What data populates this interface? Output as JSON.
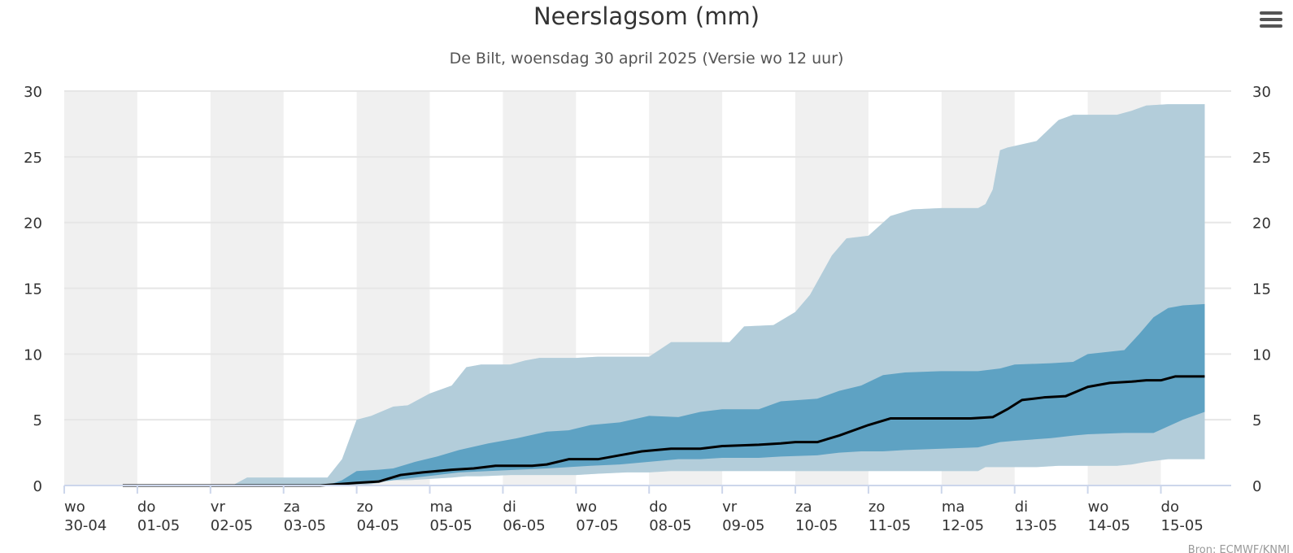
{
  "menu_icon": "hamburger-menu-icon",
  "source_credit": "Bron: ECMWF/KNMI",
  "colors": {
    "band_outer": "#b7d4e2",
    "band_middle": "#adc6d4",
    "band_inner": "#5a9fc2",
    "median_line": "#000000",
    "weekend_shade": "#f0f0f0",
    "gridline": "#e6e6e6",
    "text": "#333333"
  },
  "chart_data": {
    "type": "area",
    "title": "Neerslagsom (mm)",
    "subtitle": "De Bilt, woensdag 30 april 2025 (Versie wo 12 uur)",
    "ylim": [
      0,
      30
    ],
    "y_ticks": [
      0,
      5,
      10,
      15,
      20,
      25,
      30
    ],
    "y_axis_both_sides": true,
    "x_ticks": [
      {
        "day": "wo",
        "date": "30-04"
      },
      {
        "day": "do",
        "date": "01-05"
      },
      {
        "day": "vr",
        "date": "02-05"
      },
      {
        "day": "za",
        "date": "03-05"
      },
      {
        "day": "zo",
        "date": "04-05"
      },
      {
        "day": "ma",
        "date": "05-05"
      },
      {
        "day": "di",
        "date": "06-05"
      },
      {
        "day": "wo",
        "date": "07-05"
      },
      {
        "day": "do",
        "date": "08-05"
      },
      {
        "day": "vr",
        "date": "09-05"
      },
      {
        "day": "za",
        "date": "10-05"
      },
      {
        "day": "zo",
        "date": "11-05"
      },
      {
        "day": "ma",
        "date": "12-05"
      },
      {
        "day": "di",
        "date": "13-05"
      },
      {
        "day": "wo",
        "date": "14-05"
      },
      {
        "day": "do",
        "date": "15-05"
      }
    ],
    "x_unit": "days since 30-04 00:00",
    "x_max": 15.6,
    "shaded_day_bands": [
      0,
      2,
      4,
      6,
      8,
      10,
      12,
      14
    ],
    "grid": true,
    "series": [
      {
        "role": "outer band",
        "data": [
          [
            0.8,
            0,
            0
          ],
          [
            2.3,
            0,
            0
          ],
          [
            2.5,
            0,
            0.6
          ],
          [
            3.6,
            0,
            0.6
          ],
          [
            3.8,
            0,
            2.0
          ],
          [
            4.0,
            0,
            5.0
          ],
          [
            4.2,
            0.1,
            5.3
          ],
          [
            4.5,
            0.4,
            6.0
          ],
          [
            4.7,
            0.4,
            6.1
          ],
          [
            5.0,
            0.5,
            7.0
          ],
          [
            5.3,
            0.6,
            7.6
          ],
          [
            5.5,
            0.7,
            9.0
          ],
          [
            5.7,
            0.7,
            9.2
          ],
          [
            6.1,
            0.8,
            9.2
          ],
          [
            6.3,
            0.8,
            9.5
          ],
          [
            6.5,
            0.8,
            9.7
          ],
          [
            7.0,
            0.8,
            9.7
          ],
          [
            7.3,
            0.9,
            9.8
          ],
          [
            7.7,
            1.0,
            9.8
          ],
          [
            8.0,
            1.0,
            9.8
          ],
          [
            8.3,
            1.1,
            10.9
          ],
          [
            9.1,
            1.1,
            10.9
          ],
          [
            9.3,
            1.1,
            12.1
          ],
          [
            9.7,
            1.1,
            12.2
          ],
          [
            10.0,
            1.1,
            13.2
          ],
          [
            10.2,
            1.1,
            14.5
          ],
          [
            10.5,
            1.1,
            17.5
          ],
          [
            10.7,
            1.1,
            18.8
          ],
          [
            11.0,
            1.1,
            19.0
          ],
          [
            11.3,
            1.1,
            20.5
          ],
          [
            11.6,
            1.1,
            21.0
          ],
          [
            12.0,
            1.1,
            21.1
          ],
          [
            12.5,
            1.1,
            21.1
          ],
          [
            12.6,
            1.4,
            21.4
          ],
          [
            12.7,
            1.4,
            22.5
          ],
          [
            12.8,
            1.4,
            25.5
          ],
          [
            12.9,
            1.4,
            25.7
          ],
          [
            13.3,
            1.4,
            26.2
          ],
          [
            13.6,
            1.5,
            27.8
          ],
          [
            13.8,
            1.5,
            28.2
          ],
          [
            14.4,
            1.5,
            28.2
          ],
          [
            14.6,
            1.6,
            28.5
          ],
          [
            14.8,
            1.8,
            28.9
          ],
          [
            15.1,
            2.0,
            29.0
          ],
          [
            15.6,
            2.0,
            29.0
          ]
        ]
      },
      {
        "role": "inner band",
        "data": [
          [
            3.6,
            0,
            0
          ],
          [
            3.8,
            0.1,
            0.4
          ],
          [
            4.0,
            0.2,
            1.1
          ],
          [
            4.3,
            0.3,
            1.2
          ],
          [
            4.5,
            0.4,
            1.3
          ],
          [
            4.8,
            0.6,
            1.8
          ],
          [
            5.1,
            0.8,
            2.2
          ],
          [
            5.4,
            1.0,
            2.7
          ],
          [
            5.8,
            1.1,
            3.2
          ],
          [
            6.2,
            1.2,
            3.6
          ],
          [
            6.6,
            1.3,
            4.1
          ],
          [
            6.9,
            1.4,
            4.2
          ],
          [
            7.2,
            1.5,
            4.6
          ],
          [
            7.6,
            1.6,
            4.8
          ],
          [
            8.0,
            1.8,
            5.3
          ],
          [
            8.4,
            2.0,
            5.2
          ],
          [
            8.7,
            2.0,
            5.6
          ],
          [
            9.0,
            2.1,
            5.8
          ],
          [
            9.5,
            2.1,
            5.8
          ],
          [
            9.8,
            2.2,
            6.4
          ],
          [
            10.3,
            2.3,
            6.6
          ],
          [
            10.6,
            2.5,
            7.2
          ],
          [
            10.9,
            2.6,
            7.6
          ],
          [
            11.2,
            2.6,
            8.4
          ],
          [
            11.5,
            2.7,
            8.6
          ],
          [
            12.0,
            2.8,
            8.7
          ],
          [
            12.5,
            2.9,
            8.7
          ],
          [
            12.8,
            3.3,
            8.9
          ],
          [
            13.0,
            3.4,
            9.2
          ],
          [
            13.5,
            3.6,
            9.3
          ],
          [
            13.8,
            3.8,
            9.4
          ],
          [
            14.0,
            3.9,
            10.0
          ],
          [
            14.5,
            4.0,
            10.3
          ],
          [
            14.7,
            4.0,
            11.5
          ],
          [
            14.9,
            4.0,
            12.8
          ],
          [
            15.1,
            4.5,
            13.5
          ],
          [
            15.3,
            5.0,
            13.7
          ],
          [
            15.6,
            5.6,
            13.8
          ]
        ]
      },
      {
        "role": "median line",
        "data": [
          [
            0.8,
            0
          ],
          [
            3.5,
            0
          ],
          [
            4.0,
            0.2
          ],
          [
            4.3,
            0.3
          ],
          [
            4.6,
            0.8
          ],
          [
            4.9,
            1.0
          ],
          [
            5.3,
            1.2
          ],
          [
            5.6,
            1.3
          ],
          [
            5.9,
            1.5
          ],
          [
            6.4,
            1.5
          ],
          [
            6.6,
            1.6
          ],
          [
            6.9,
            2.0
          ],
          [
            7.3,
            2.0
          ],
          [
            7.6,
            2.3
          ],
          [
            7.9,
            2.6
          ],
          [
            8.3,
            2.8
          ],
          [
            8.7,
            2.8
          ],
          [
            9.0,
            3.0
          ],
          [
            9.5,
            3.1
          ],
          [
            9.8,
            3.2
          ],
          [
            10.0,
            3.3
          ],
          [
            10.3,
            3.3
          ],
          [
            10.6,
            3.8
          ],
          [
            11.0,
            4.6
          ],
          [
            11.3,
            5.1
          ],
          [
            12.4,
            5.1
          ],
          [
            12.7,
            5.2
          ],
          [
            12.9,
            5.8
          ],
          [
            13.1,
            6.5
          ],
          [
            13.4,
            6.7
          ],
          [
            13.7,
            6.8
          ],
          [
            14.0,
            7.5
          ],
          [
            14.3,
            7.8
          ],
          [
            14.6,
            7.9
          ],
          [
            14.8,
            8.0
          ],
          [
            15.0,
            8.0
          ],
          [
            15.2,
            8.3
          ],
          [
            15.6,
            8.3
          ]
        ]
      }
    ]
  }
}
